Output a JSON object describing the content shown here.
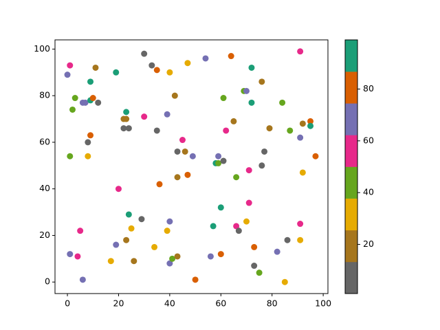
{
  "chart_data": {
    "type": "scatter",
    "xlim": [
      -4.85,
      101.85
    ],
    "ylim": [
      -4.95,
      103.95
    ],
    "xticks": [
      0,
      20,
      40,
      60,
      80,
      100
    ],
    "yticks": [
      0,
      20,
      40,
      60,
      80,
      100
    ],
    "colormap": [
      "#666666",
      "#a6761d",
      "#e6ab02",
      "#66a61e",
      "#e7298a",
      "#7570b3",
      "#d95f02",
      "#1b9e77"
    ],
    "clim": [
      1,
      99
    ],
    "cticks": [
      20,
      40,
      60,
      80
    ],
    "series": [
      {
        "x": [
          0,
          1,
          2,
          3,
          6,
          7,
          9,
          10,
          12,
          11,
          9,
          8,
          9,
          1,
          8,
          19,
          23,
          22,
          23,
          22,
          24,
          30,
          33,
          35,
          40,
          30,
          35,
          39,
          42,
          47,
          54,
          64,
          72,
          76,
          69,
          70,
          61,
          72,
          84,
          62,
          65,
          79,
          87,
          91,
          92,
          95,
          95,
          45,
          43,
          46,
          49,
          59,
          58,
          59,
          61,
          43,
          47,
          36,
          20,
          66,
          71,
          77,
          76,
          92,
          97,
          24,
          29,
          25,
          5,
          23,
          19,
          40,
          39,
          34,
          1,
          4,
          17,
          26,
          6,
          40,
          41,
          43,
          50,
          56,
          57,
          60,
          60,
          66,
          67,
          70,
          71,
          73,
          73,
          75,
          82,
          86,
          85,
          91,
          91,
          91
        ],
        "y": [
          89,
          93,
          74,
          79,
          77,
          77,
          78,
          79,
          77,
          92,
          86,
          60,
          63,
          54,
          54,
          90,
          73,
          70,
          70,
          66,
          66,
          98,
          93,
          91,
          90,
          71,
          65,
          72,
          80,
          94,
          96,
          97,
          92,
          86,
          82,
          82,
          79,
          77,
          77,
          65,
          69,
          66,
          65,
          62,
          68,
          69,
          67,
          61,
          56,
          56,
          54,
          54,
          51,
          51,
          52,
          45,
          46,
          42,
          40,
          45,
          48,
          56,
          50,
          47,
          54,
          29,
          27,
          23,
          22,
          18,
          16,
          26,
          22,
          15,
          12,
          11,
          9,
          9,
          1,
          8,
          10,
          11,
          1,
          11,
          24,
          32,
          12,
          24,
          22,
          26,
          34,
          15,
          7,
          4,
          13,
          18,
          0,
          18,
          25,
          99
        ],
        "c": [
          68,
          56,
          44,
          44,
          68,
          68,
          93,
          80,
          7,
          19,
          93,
          7,
          80,
          44,
          32,
          93,
          93,
          19,
          19,
          7,
          7,
          7,
          7,
          80,
          32,
          56,
          7,
          68,
          19,
          32,
          68,
          80,
          93,
          19,
          44,
          68,
          44,
          93,
          44,
          56,
          19,
          19,
          44,
          68,
          19,
          80,
          93,
          56,
          7,
          19,
          68,
          68,
          93,
          44,
          7,
          19,
          80,
          80,
          56,
          44,
          56,
          7,
          7,
          32,
          80,
          93,
          7,
          32,
          56,
          19,
          68,
          68,
          32,
          32,
          68,
          56,
          32,
          19,
          68,
          68,
          44,
          19,
          80,
          68,
          93,
          93,
          80,
          56,
          7,
          32,
          56,
          80,
          7,
          44,
          68,
          7,
          32,
          32,
          56,
          56
        ]
      }
    ]
  }
}
